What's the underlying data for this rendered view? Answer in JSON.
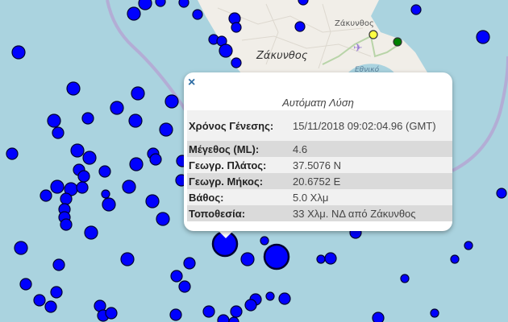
{
  "map": {
    "colors": {
      "sea": "#aad3df",
      "land": "#f1eee8",
      "marker": "#0000ff",
      "marker_stroke": "#000033",
      "boundary": "#b4a8d4",
      "station_yellow": "#ffff44",
      "station_green": "#008000"
    },
    "labels": {
      "island": "Ζάκυνθος",
      "town": "Ζάκυνθος",
      "gulf": "Εθνικό"
    },
    "icons": {
      "airport": "airplane-icon"
    }
  },
  "popup": {
    "close_icon": "close-icon",
    "close_label": "×",
    "title": "Αυτόματη Λύση",
    "rows": [
      {
        "label": "Χρόνος Γένεσης:",
        "value": "15/11/2018 09:02:04.96 (GMT)"
      },
      {
        "label": "Μέγεθος (ML):",
        "value": "4.6"
      },
      {
        "label": "Γεωγρ. Πλάτος:",
        "value": "37.5076 N"
      },
      {
        "label": "Γεωγρ. Μήκος:",
        "value": "20.6752 E"
      },
      {
        "label": "Βάθος:",
        "value": "5.0 Χλμ"
      },
      {
        "label": "Τοποθεσία:",
        "value": "33 Χλμ. ΝΔ από Ζάκυνθος"
      }
    ]
  }
}
